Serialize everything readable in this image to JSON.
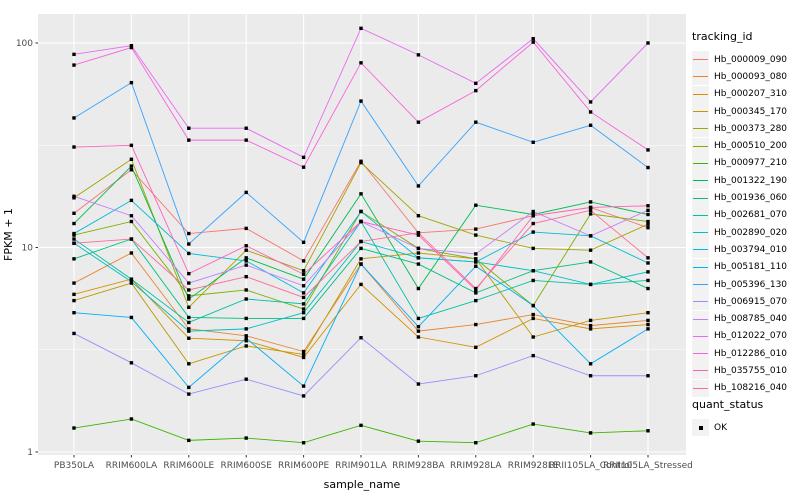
{
  "chart_data": {
    "type": "line",
    "title": "",
    "xlabel": "sample_name",
    "ylabel": "FPKM + 1",
    "y_scale": "log10",
    "y_ticks": [
      1,
      10,
      100
    ],
    "y_minor_gridlines": [
      3.1623,
      31.623
    ],
    "ylim": [
      0.95,
      139
    ],
    "grid": true,
    "panel_color": "#EBEBEB",
    "gridline_color": "#FFFFFF",
    "tick_label_color": "#4D4D4D",
    "point_marker": "black-square",
    "legend_position": "right",
    "legend_title": "tracking_id",
    "quant_legend_title": "quant_status",
    "quant_ok": "OK",
    "categories": [
      "PB350LA",
      "RRIM600LA",
      "RRIM600LE",
      "RRIM600SE",
      "RRIM600PE",
      "RRIM901LA",
      "RRIM928BA",
      "RRIM928LA",
      "RRIM928LE",
      "RRII105LA_Control",
      "RRII105LA_Stressed"
    ],
    "series": [
      {
        "name": "Hb_000009_090",
        "color": "#F8766D",
        "values": [
          14.7,
          24.0,
          11.7,
          12.4,
          8.6,
          26.4,
          11.8,
          12.3,
          14.3,
          15.7,
          12.5
        ]
      },
      {
        "name": "Hb_000093_080",
        "color": "#EA8331",
        "values": [
          6.7,
          9.4,
          4.0,
          3.7,
          3.1,
          8.3,
          3.9,
          4.2,
          4.7,
          4.15,
          4.4
        ]
      },
      {
        "name": "Hb_000207_310",
        "color": "#D89000",
        "values": [
          5.9,
          7.0,
          3.6,
          3.5,
          2.9,
          6.6,
          3.65,
          3.25,
          4.5,
          4.0,
          4.2
        ]
      },
      {
        "name": "Hb_000345_170",
        "color": "#C09B00",
        "values": [
          5.5,
          6.7,
          2.7,
          3.3,
          3.0,
          8.8,
          9.4,
          8.8,
          3.65,
          4.4,
          4.8
        ]
      },
      {
        "name": "Hb_000373_280",
        "color": "#A3A500",
        "values": [
          17.5,
          27.0,
          5.1,
          9.7,
          7.7,
          26.0,
          14.3,
          11.5,
          9.9,
          9.7,
          13.0
        ]
      },
      {
        "name": "Hb_000510_200",
        "color": "#7CAE00",
        "values": [
          11.5,
          13.4,
          5.8,
          6.2,
          5.0,
          15.0,
          9.9,
          8.8,
          5.2,
          14.6,
          13.4
        ]
      },
      {
        "name": "Hb_000977_210",
        "color": "#39B600",
        "values": [
          1.31,
          1.45,
          1.14,
          1.17,
          1.11,
          1.35,
          1.13,
          1.11,
          1.37,
          1.24,
          1.27
        ]
      },
      {
        "name": "Hb_001322_190",
        "color": "#00BB4E",
        "values": [
          13.1,
          25.0,
          5.6,
          8.9,
          7.0,
          18.3,
          6.3,
          16.1,
          14.5,
          16.7,
          14.5
        ]
      },
      {
        "name": "Hb_001936_060",
        "color": "#00BF7D",
        "values": [
          8.8,
          11.0,
          4.55,
          4.5,
          4.5,
          9.9,
          8.3,
          6.0,
          7.7,
          8.5,
          6.3
        ]
      },
      {
        "name": "Hb_002681_070",
        "color": "#00C1A3",
        "values": [
          11.0,
          7.0,
          4.3,
          5.6,
          5.3,
          13.4,
          4.5,
          5.5,
          6.9,
          6.6,
          6.9
        ]
      },
      {
        "name": "Hb_002890_020",
        "color": "#00BFC4",
        "values": [
          10.5,
          6.8,
          3.9,
          4.0,
          4.8,
          10.7,
          8.9,
          8.5,
          7.7,
          6.6,
          7.6
        ]
      },
      {
        "name": "Hb_003794_010",
        "color": "#00BBDA",
        "values": [
          11.7,
          17.0,
          9.35,
          8.6,
          6.0,
          15.0,
          8.9,
          8.5,
          11.9,
          11.4,
          8.4
        ]
      },
      {
        "name": "Hb_005181_110",
        "color": "#00B0F6",
        "values": [
          4.8,
          4.55,
          2.07,
          3.6,
          2.1,
          8.3,
          4.1,
          8.1,
          5.2,
          2.7,
          4.0
        ]
      },
      {
        "name": "Hb_005396_130",
        "color": "#35A2FF",
        "values": [
          43,
          64,
          10.4,
          18.6,
          10.6,
          52,
          20,
          41,
          32.7,
          39.6,
          24.6
        ]
      },
      {
        "name": "Hb_006915_070",
        "color": "#9590FF",
        "values": [
          3.8,
          2.73,
          1.92,
          2.27,
          1.88,
          3.62,
          2.15,
          2.36,
          2.96,
          2.36,
          2.36
        ]
      },
      {
        "name": "Hb_008785_040",
        "color": "#C77CFF",
        "values": [
          17.8,
          14.3,
          6.7,
          8.2,
          6.5,
          13.4,
          9.9,
          9.3,
          15.0,
          11.4,
          15.2
        ]
      },
      {
        "name": "Hb_012022_070",
        "color": "#E76BF3",
        "values": [
          88,
          97,
          38.3,
          38.3,
          27.6,
          118,
          87.5,
          63.5,
          105,
          51.5,
          100
        ]
      },
      {
        "name": "Hb_012286_010",
        "color": "#FA62DB",
        "values": [
          78,
          95,
          33.5,
          33.5,
          24.7,
          80,
          41,
          58.5,
          101,
          46,
          30
        ]
      },
      {
        "name": "Hb_035755_010",
        "color": "#FF62BC",
        "values": [
          31,
          31.6,
          7.45,
          10.2,
          7.4,
          13.4,
          11.5,
          6.2,
          14.3,
          15.7,
          16.0
        ]
      },
      {
        "name": "Hb_108216_040",
        "color": "#FF6A98",
        "values": [
          10.5,
          11.0,
          6.2,
          7.2,
          5.7,
          10.7,
          11.8,
          6.3,
          13.1,
          15.2,
          8.9
        ]
      }
    ]
  }
}
